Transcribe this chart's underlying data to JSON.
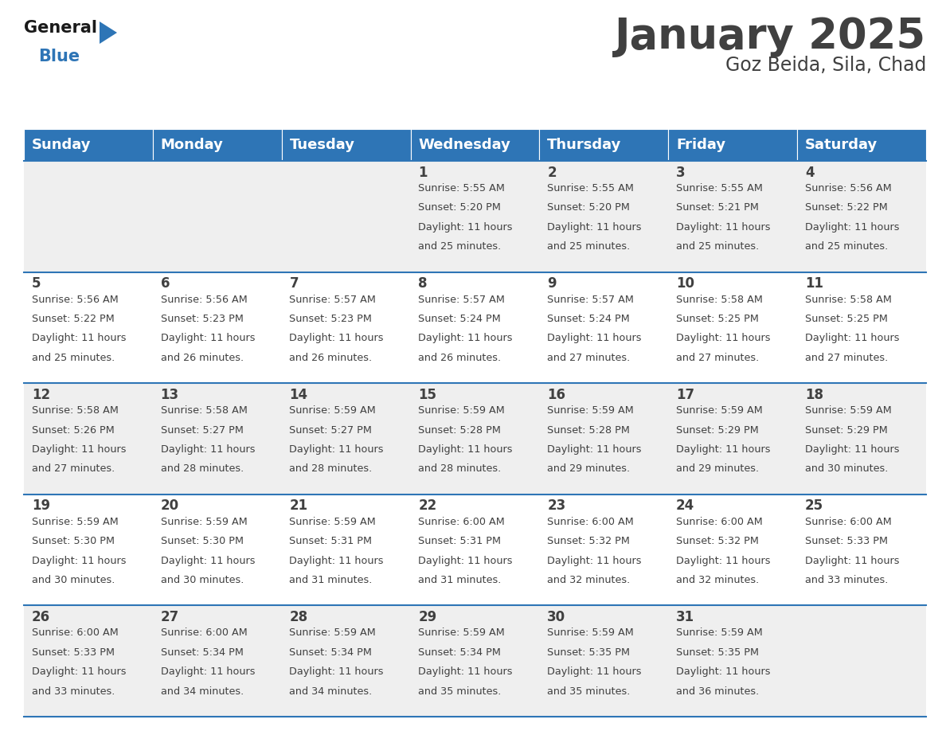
{
  "title": "January 2025",
  "subtitle": "Goz Beida, Sila, Chad",
  "days_of_week": [
    "Sunday",
    "Monday",
    "Tuesday",
    "Wednesday",
    "Thursday",
    "Friday",
    "Saturday"
  ],
  "header_bg": "#2E75B6",
  "header_text": "#FFFFFF",
  "row_bg_odd": "#EFEFEF",
  "row_bg_even": "#FFFFFF",
  "cell_border": "#2E75B6",
  "text_color": "#404040",
  "calendar_data": [
    [
      null,
      null,
      null,
      {
        "day": 1,
        "sunrise": "5:55 AM",
        "sunset": "5:20 PM",
        "daylight": "11 hours and 25 minutes."
      },
      {
        "day": 2,
        "sunrise": "5:55 AM",
        "sunset": "5:20 PM",
        "daylight": "11 hours and 25 minutes."
      },
      {
        "day": 3,
        "sunrise": "5:55 AM",
        "sunset": "5:21 PM",
        "daylight": "11 hours and 25 minutes."
      },
      {
        "day": 4,
        "sunrise": "5:56 AM",
        "sunset": "5:22 PM",
        "daylight": "11 hours and 25 minutes."
      }
    ],
    [
      {
        "day": 5,
        "sunrise": "5:56 AM",
        "sunset": "5:22 PM",
        "daylight": "11 hours and 25 minutes."
      },
      {
        "day": 6,
        "sunrise": "5:56 AM",
        "sunset": "5:23 PM",
        "daylight": "11 hours and 26 minutes."
      },
      {
        "day": 7,
        "sunrise": "5:57 AM",
        "sunset": "5:23 PM",
        "daylight": "11 hours and 26 minutes."
      },
      {
        "day": 8,
        "sunrise": "5:57 AM",
        "sunset": "5:24 PM",
        "daylight": "11 hours and 26 minutes."
      },
      {
        "day": 9,
        "sunrise": "5:57 AM",
        "sunset": "5:24 PM",
        "daylight": "11 hours and 27 minutes."
      },
      {
        "day": 10,
        "sunrise": "5:58 AM",
        "sunset": "5:25 PM",
        "daylight": "11 hours and 27 minutes."
      },
      {
        "day": 11,
        "sunrise": "5:58 AM",
        "sunset": "5:25 PM",
        "daylight": "11 hours and 27 minutes."
      }
    ],
    [
      {
        "day": 12,
        "sunrise": "5:58 AM",
        "sunset": "5:26 PM",
        "daylight": "11 hours and 27 minutes."
      },
      {
        "day": 13,
        "sunrise": "5:58 AM",
        "sunset": "5:27 PM",
        "daylight": "11 hours and 28 minutes."
      },
      {
        "day": 14,
        "sunrise": "5:59 AM",
        "sunset": "5:27 PM",
        "daylight": "11 hours and 28 minutes."
      },
      {
        "day": 15,
        "sunrise": "5:59 AM",
        "sunset": "5:28 PM",
        "daylight": "11 hours and 28 minutes."
      },
      {
        "day": 16,
        "sunrise": "5:59 AM",
        "sunset": "5:28 PM",
        "daylight": "11 hours and 29 minutes."
      },
      {
        "day": 17,
        "sunrise": "5:59 AM",
        "sunset": "5:29 PM",
        "daylight": "11 hours and 29 minutes."
      },
      {
        "day": 18,
        "sunrise": "5:59 AM",
        "sunset": "5:29 PM",
        "daylight": "11 hours and 30 minutes."
      }
    ],
    [
      {
        "day": 19,
        "sunrise": "5:59 AM",
        "sunset": "5:30 PM",
        "daylight": "11 hours and 30 minutes."
      },
      {
        "day": 20,
        "sunrise": "5:59 AM",
        "sunset": "5:30 PM",
        "daylight": "11 hours and 30 minutes."
      },
      {
        "day": 21,
        "sunrise": "5:59 AM",
        "sunset": "5:31 PM",
        "daylight": "11 hours and 31 minutes."
      },
      {
        "day": 22,
        "sunrise": "6:00 AM",
        "sunset": "5:31 PM",
        "daylight": "11 hours and 31 minutes."
      },
      {
        "day": 23,
        "sunrise": "6:00 AM",
        "sunset": "5:32 PM",
        "daylight": "11 hours and 32 minutes."
      },
      {
        "day": 24,
        "sunrise": "6:00 AM",
        "sunset": "5:32 PM",
        "daylight": "11 hours and 32 minutes."
      },
      {
        "day": 25,
        "sunrise": "6:00 AM",
        "sunset": "5:33 PM",
        "daylight": "11 hours and 33 minutes."
      }
    ],
    [
      {
        "day": 26,
        "sunrise": "6:00 AM",
        "sunset": "5:33 PM",
        "daylight": "11 hours and 33 minutes."
      },
      {
        "day": 27,
        "sunrise": "6:00 AM",
        "sunset": "5:34 PM",
        "daylight": "11 hours and 34 minutes."
      },
      {
        "day": 28,
        "sunrise": "5:59 AM",
        "sunset": "5:34 PM",
        "daylight": "11 hours and 34 minutes."
      },
      {
        "day": 29,
        "sunrise": "5:59 AM",
        "sunset": "5:34 PM",
        "daylight": "11 hours and 35 minutes."
      },
      {
        "day": 30,
        "sunrise": "5:59 AM",
        "sunset": "5:35 PM",
        "daylight": "11 hours and 35 minutes."
      },
      {
        "day": 31,
        "sunrise": "5:59 AM",
        "sunset": "5:35 PM",
        "daylight": "11 hours and 36 minutes."
      },
      null
    ]
  ],
  "logo_general_color": "#1a1a1a",
  "logo_blue_color": "#2E75B6",
  "title_fontsize": 38,
  "subtitle_fontsize": 17,
  "header_fontsize": 13,
  "day_num_fontsize": 12,
  "cell_text_fontsize": 9.2
}
